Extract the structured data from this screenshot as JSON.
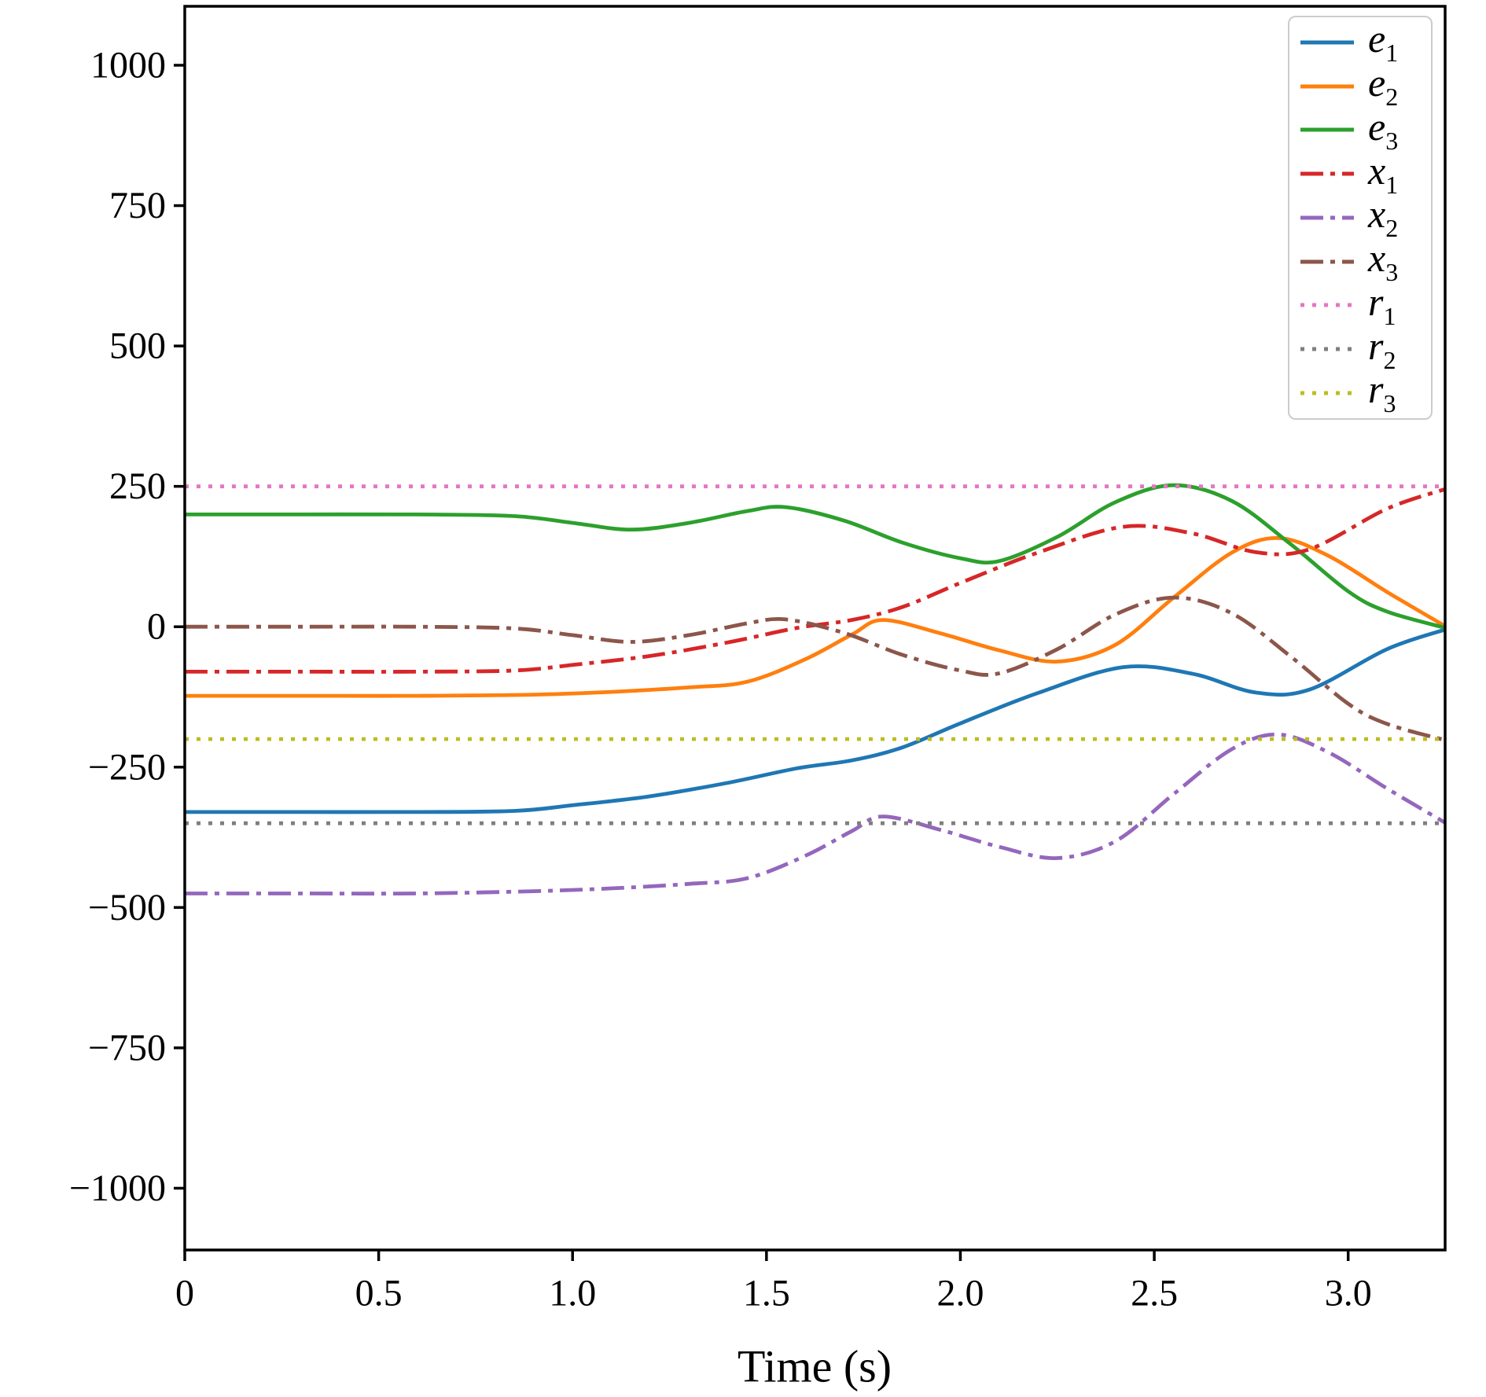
{
  "figure": {
    "background": "#ffffff"
  },
  "chart_data": {
    "type": "line",
    "title": "",
    "xlabel": "Time (s)",
    "ylabel": "",
    "xlim": [
      0,
      3.25
    ],
    "ylim": [
      -1110,
      1105
    ],
    "grid": false,
    "legend_position": "upper right",
    "x_ticks": [
      {
        "v": 0,
        "label": "0"
      },
      {
        "v": 0.5,
        "label": "0.5"
      },
      {
        "v": 1.0,
        "label": "1.0"
      },
      {
        "v": 1.5,
        "label": "1.5"
      },
      {
        "v": 2.0,
        "label": "2.0"
      },
      {
        "v": 2.5,
        "label": "2.5"
      },
      {
        "v": 3.0,
        "label": "3.0"
      }
    ],
    "y_ticks": [
      {
        "v": 1000,
        "label": "1000"
      },
      {
        "v": 750,
        "label": "750"
      },
      {
        "v": 500,
        "label": "500"
      },
      {
        "v": 250,
        "label": "250"
      },
      {
        "v": 0,
        "label": "0"
      },
      {
        "v": -250,
        "label": "−250"
      },
      {
        "v": -500,
        "label": "−500"
      },
      {
        "v": -750,
        "label": "−750"
      },
      {
        "v": -1000,
        "label": "−1000"
      }
    ],
    "series": [
      {
        "id": "e1",
        "label_base": "e",
        "label_sub": "1",
        "color": "#1f77b4",
        "style": "solid",
        "points": [
          [
            0,
            -330
          ],
          [
            0.3,
            -330
          ],
          [
            0.6,
            -330
          ],
          [
            0.85,
            -328
          ],
          [
            1.0,
            -318
          ],
          [
            1.2,
            -302
          ],
          [
            1.4,
            -278
          ],
          [
            1.58,
            -252
          ],
          [
            1.72,
            -238
          ],
          [
            1.85,
            -215
          ],
          [
            2.0,
            -172
          ],
          [
            2.2,
            -118
          ],
          [
            2.42,
            -72
          ],
          [
            2.6,
            -84
          ],
          [
            2.76,
            -117
          ],
          [
            2.9,
            -112
          ],
          [
            3.1,
            -40
          ],
          [
            3.25,
            -5
          ]
        ]
      },
      {
        "id": "e2",
        "label_base": "e",
        "label_sub": "2",
        "color": "#ff7f0e",
        "style": "solid",
        "points": [
          [
            0,
            -123
          ],
          [
            0.3,
            -123
          ],
          [
            0.6,
            -123
          ],
          [
            0.9,
            -121
          ],
          [
            1.1,
            -116
          ],
          [
            1.3,
            -108
          ],
          [
            1.45,
            -98
          ],
          [
            1.6,
            -58
          ],
          [
            1.72,
            -14
          ],
          [
            1.8,
            12
          ],
          [
            1.95,
            -12
          ],
          [
            2.1,
            -42
          ],
          [
            2.25,
            -62
          ],
          [
            2.4,
            -32
          ],
          [
            2.55,
            52
          ],
          [
            2.7,
            132
          ],
          [
            2.82,
            158
          ],
          [
            2.95,
            126
          ],
          [
            3.1,
            62
          ],
          [
            3.25,
            1
          ]
        ]
      },
      {
        "id": "e3",
        "label_base": "e",
        "label_sub": "3",
        "color": "#2ca02c",
        "style": "solid",
        "points": [
          [
            0,
            200
          ],
          [
            0.3,
            200
          ],
          [
            0.6,
            200
          ],
          [
            0.85,
            197
          ],
          [
            1.0,
            185
          ],
          [
            1.15,
            173
          ],
          [
            1.3,
            185
          ],
          [
            1.45,
            206
          ],
          [
            1.55,
            213
          ],
          [
            1.7,
            189
          ],
          [
            1.85,
            150
          ],
          [
            2.0,
            122
          ],
          [
            2.1,
            117
          ],
          [
            2.25,
            160
          ],
          [
            2.4,
            222
          ],
          [
            2.55,
            252
          ],
          [
            2.7,
            224
          ],
          [
            2.85,
            148
          ],
          [
            3.0,
            63
          ],
          [
            3.1,
            27
          ],
          [
            3.25,
            -2
          ]
        ]
      },
      {
        "id": "x1",
        "label_base": "x",
        "label_sub": "1",
        "color": "#d62728",
        "style": "dashdot",
        "points": [
          [
            0,
            -80
          ],
          [
            0.3,
            -80
          ],
          [
            0.6,
            -80
          ],
          [
            0.85,
            -78
          ],
          [
            1.0,
            -68
          ],
          [
            1.2,
            -52
          ],
          [
            1.4,
            -28
          ],
          [
            1.58,
            -2
          ],
          [
            1.72,
            12
          ],
          [
            1.85,
            35
          ],
          [
            2.0,
            78
          ],
          [
            2.2,
            132
          ],
          [
            2.42,
            178
          ],
          [
            2.6,
            166
          ],
          [
            2.76,
            133
          ],
          [
            2.9,
            138
          ],
          [
            3.1,
            210
          ],
          [
            3.25,
            245
          ]
        ]
      },
      {
        "id": "x2",
        "label_base": "x",
        "label_sub": "2",
        "color": "#9467bd",
        "style": "dashdot",
        "points": [
          [
            0,
            -475
          ],
          [
            0.3,
            -475
          ],
          [
            0.6,
            -475
          ],
          [
            0.9,
            -471
          ],
          [
            1.1,
            -466
          ],
          [
            1.3,
            -458
          ],
          [
            1.45,
            -448
          ],
          [
            1.6,
            -408
          ],
          [
            1.72,
            -364
          ],
          [
            1.8,
            -338
          ],
          [
            1.95,
            -362
          ],
          [
            2.1,
            -392
          ],
          [
            2.25,
            -412
          ],
          [
            2.4,
            -382
          ],
          [
            2.55,
            -298
          ],
          [
            2.7,
            -218
          ],
          [
            2.82,
            -192
          ],
          [
            2.95,
            -224
          ],
          [
            3.1,
            -288
          ],
          [
            3.25,
            -349
          ]
        ]
      },
      {
        "id": "x3",
        "label_base": "x",
        "label_sub": "3",
        "color": "#8c564b",
        "style": "dashdot",
        "points": [
          [
            0,
            0
          ],
          [
            0.3,
            0
          ],
          [
            0.6,
            0
          ],
          [
            0.85,
            -3
          ],
          [
            1.0,
            -15
          ],
          [
            1.15,
            -27
          ],
          [
            1.3,
            -15
          ],
          [
            1.45,
            6
          ],
          [
            1.55,
            13
          ],
          [
            1.7,
            -11
          ],
          [
            1.85,
            -50
          ],
          [
            2.0,
            -78
          ],
          [
            2.1,
            -83
          ],
          [
            2.25,
            -40
          ],
          [
            2.4,
            22
          ],
          [
            2.55,
            52
          ],
          [
            2.7,
            24
          ],
          [
            2.85,
            -52
          ],
          [
            3.0,
            -137
          ],
          [
            3.1,
            -173
          ],
          [
            3.25,
            -202
          ]
        ]
      },
      {
        "id": "r1",
        "label_base": "r",
        "label_sub": "1",
        "color": "#e377c2",
        "style": "dotted",
        "points": [
          [
            0,
            250
          ],
          [
            3.25,
            250
          ]
        ]
      },
      {
        "id": "r2",
        "label_base": "r",
        "label_sub": "2",
        "color": "#7f7f7f",
        "style": "dotted",
        "points": [
          [
            0,
            -350
          ],
          [
            3.25,
            -350
          ]
        ]
      },
      {
        "id": "r3",
        "label_base": "r",
        "label_sub": "3",
        "color": "#bcbd22",
        "style": "dotted",
        "points": [
          [
            0,
            -200
          ],
          [
            3.25,
            -200
          ]
        ]
      }
    ]
  }
}
